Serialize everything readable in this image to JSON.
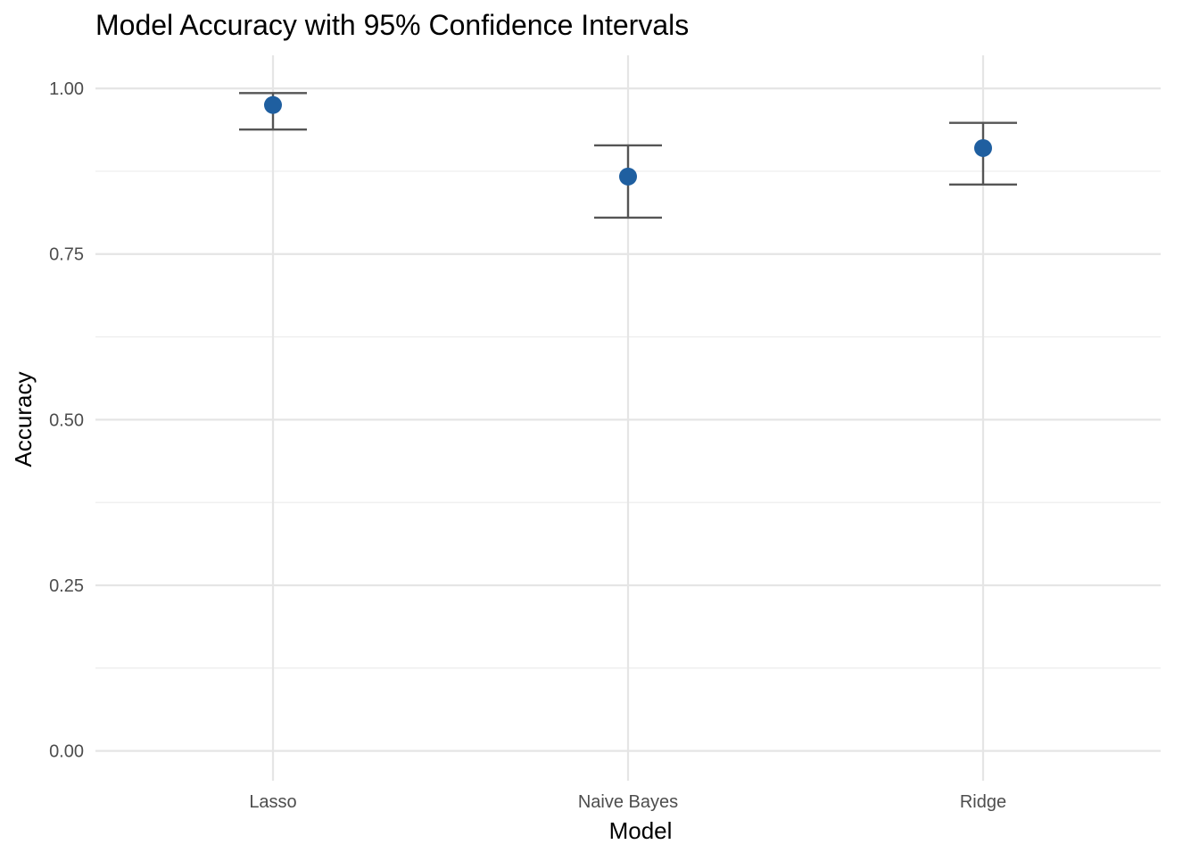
{
  "chart_data": {
    "type": "scatter",
    "title": "Model Accuracy with 95% Confidence Intervals",
    "xlabel": "Model",
    "ylabel": "Accuracy",
    "categories": [
      "Lasso",
      "Naive Bayes",
      "Ridge"
    ],
    "series": [
      {
        "values": [
          0.975,
          0.867,
          0.91
        ],
        "lower": [
          0.938,
          0.805,
          0.855
        ],
        "upper": [
          0.993,
          0.914,
          0.948
        ]
      }
    ],
    "ylim": [
      -0.045,
      1.05
    ],
    "yticks": [
      0,
      0.25,
      0.5,
      0.75,
      1
    ],
    "ytick_labels": [
      "0.00",
      "0.25",
      "0.50",
      "0.75",
      "1.00"
    ],
    "grid": true,
    "legend": "none",
    "colors": {
      "point": "#1f5fa0",
      "errorbar": "#555555",
      "grid": "#e5e5e5"
    }
  }
}
